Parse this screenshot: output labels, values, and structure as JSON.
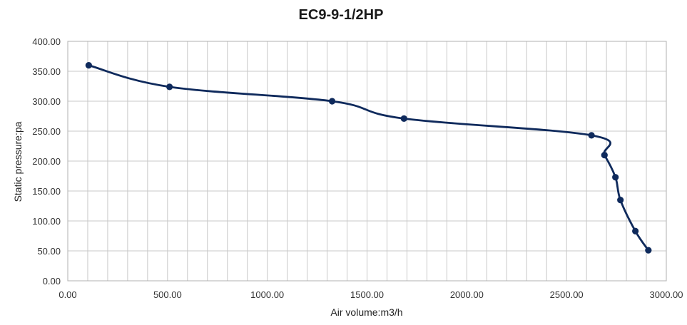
{
  "chart_data": {
    "type": "line",
    "title": "EC9-9-1/2HP",
    "xlabel": "Air volume:m3/h",
    "ylabel": "Static pressure:pa",
    "xlim": [
      0,
      3000
    ],
    "ylim": [
      0,
      400
    ],
    "x_major_ticks": [
      "0.00",
      "500.00",
      "1000.00",
      "1500.00",
      "2000.00",
      "2500.00",
      "3000.00"
    ],
    "y_major_ticks": [
      "0.00",
      "50.00",
      "100.00",
      "150.00",
      "200.00",
      "250.00",
      "300.00",
      "350.00",
      "400.00"
    ],
    "x_tick_values": [
      0,
      500,
      1000,
      1500,
      2000,
      2500,
      3000
    ],
    "y_tick_values": [
      0,
      50,
      100,
      150,
      200,
      250,
      300,
      350,
      400
    ],
    "x_minor_step": 100,
    "grid": true,
    "legend": "none",
    "series": [
      {
        "color": "#0f2a5c",
        "points": [
          [
            105,
            360
          ],
          [
            510,
            324
          ],
          [
            1325,
            300
          ],
          [
            1685,
            271
          ],
          [
            2625,
            243
          ],
          [
            2690,
            210
          ],
          [
            2745,
            173
          ],
          [
            2770,
            135
          ],
          [
            2845,
            83
          ],
          [
            2910,
            51
          ]
        ]
      }
    ]
  }
}
